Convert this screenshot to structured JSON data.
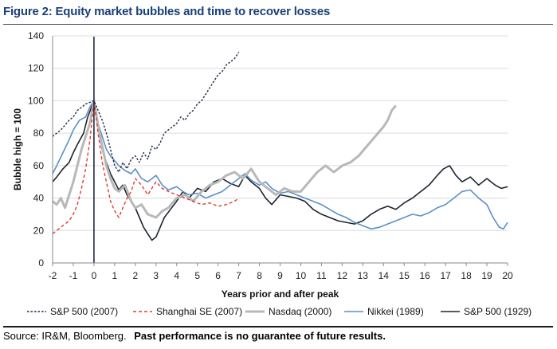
{
  "figure": {
    "title": "Figure 2: Equity market bubbles and time to recover losses",
    "source_label": "Source: IR&M, Bloomberg.",
    "disclaimer": "Past performance is no guarantee of future results."
  },
  "colors": {
    "title": "#1a3f7a",
    "sp2007": "#1f2a44",
    "shanghai": "#e23a2e",
    "nasdaq": "#b8b8b8",
    "nikkei": "#5b8fc9",
    "sp1929": "#1c2430",
    "peak_line": "#1f2a44"
  },
  "chart_data": {
    "type": "line",
    "title": "Equity market bubbles and time to recover losses",
    "xlabel": "Years prior and after peak",
    "ylabel": "Bubble high = 100",
    "xlim": [
      -2,
      20
    ],
    "ylim": [
      0,
      140
    ],
    "x_ticks": [
      -2,
      -1,
      0,
      1,
      2,
      3,
      4,
      5,
      6,
      7,
      8,
      9,
      10,
      11,
      12,
      13,
      14,
      15,
      16,
      17,
      18,
      19,
      20
    ],
    "y_ticks": [
      0,
      20,
      40,
      60,
      80,
      100,
      120,
      140
    ],
    "peak_marker_x": 0,
    "legend_position": "bottom",
    "series": [
      {
        "key": "sp1929",
        "name": "S&P 500 (1929)",
        "style": "solid",
        "x": [
          -2,
          -1.8,
          -1.5,
          -1.2,
          -1,
          -0.8,
          -0.5,
          -0.3,
          0,
          0.2,
          0.4,
          0.6,
          0.8,
          1,
          1.2,
          1.4,
          1.6,
          1.8,
          2,
          2.2,
          2.4,
          2.6,
          2.8,
          3,
          3.2,
          3.4,
          3.7,
          4,
          4.3,
          4.6,
          5,
          5.4,
          5.8,
          6.2,
          6.6,
          7,
          7.3,
          7.6,
          8,
          8.3,
          8.6,
          9,
          9.4,
          9.8,
          10.2,
          10.6,
          11,
          11.4,
          11.8,
          12.2,
          12.6,
          13,
          13.4,
          13.8,
          14.2,
          14.6,
          15,
          15.4,
          15.8,
          16.2,
          16.6,
          16.9,
          17.2,
          17.5,
          17.8,
          18.2,
          18.6,
          19,
          19.4,
          19.7,
          20
        ],
        "y": [
          50,
          53,
          58,
          62,
          68,
          73,
          80,
          90,
          100,
          85,
          70,
          62,
          55,
          50,
          45,
          48,
          42,
          38,
          34,
          28,
          22,
          18,
          14,
          16,
          22,
          28,
          33,
          38,
          44,
          40,
          46,
          44,
          50,
          52,
          49,
          47,
          54,
          50,
          46,
          40,
          36,
          42,
          41,
          40,
          38,
          33,
          30,
          28,
          26,
          25,
          24,
          26,
          30,
          33,
          35,
          33,
          37,
          40,
          44,
          48,
          54,
          58,
          60,
          54,
          50,
          53,
          48,
          52,
          48,
          46,
          47
        ]
      },
      {
        "key": "nikkei",
        "name": "Nikkei (1989)",
        "style": "solid",
        "x": [
          -2,
          -1.8,
          -1.5,
          -1.2,
          -1,
          -0.7,
          -0.4,
          -0.2,
          0,
          0.2,
          0.4,
          0.6,
          0.8,
          1,
          1.2,
          1.5,
          1.8,
          2,
          2.3,
          2.6,
          3,
          3.3,
          3.6,
          4,
          4.3,
          4.6,
          5,
          5.4,
          5.8,
          6.2,
          6.6,
          7,
          7.3,
          7.6,
          8,
          8.3,
          8.6,
          9,
          9.4,
          9.8,
          10.2,
          10.6,
          11,
          11.4,
          11.8,
          12.2,
          12.6,
          13,
          13.4,
          13.8,
          14.2,
          14.6,
          15,
          15.4,
          15.8,
          16.2,
          16.6,
          17,
          17.4,
          17.8,
          18.2,
          18.6,
          19,
          19.3,
          19.6,
          19.8,
          20
        ],
        "y": [
          55,
          60,
          68,
          76,
          82,
          88,
          90,
          96,
          100,
          86,
          78,
          70,
          66,
          63,
          60,
          57,
          55,
          58,
          52,
          50,
          54,
          48,
          45,
          47,
          44,
          42,
          43,
          40,
          42,
          44,
          48,
          52,
          55,
          51,
          48,
          50,
          46,
          43,
          44,
          42,
          40,
          38,
          36,
          33,
          30,
          28,
          25,
          23,
          21,
          22,
          24,
          26,
          28,
          30,
          29,
          31,
          34,
          36,
          40,
          44,
          45,
          40,
          36,
          28,
          22,
          21,
          25
        ]
      },
      {
        "key": "nasdaq",
        "name": "Nasdaq (2000)",
        "style": "solid",
        "x": [
          -2,
          -1.8,
          -1.6,
          -1.4,
          -1.2,
          -1,
          -0.8,
          -0.6,
          -0.4,
          -0.2,
          0,
          0.2,
          0.4,
          0.6,
          0.8,
          1,
          1.2,
          1.5,
          1.8,
          2,
          2.3,
          2.6,
          3,
          3.3,
          3.6,
          4,
          4.4,
          4.8,
          5.2,
          5.6,
          6,
          6.4,
          6.8,
          7.2,
          7.6,
          8,
          8.4,
          8.8,
          9.2,
          9.6,
          10,
          10.4,
          10.8,
          11.2,
          11.6,
          12,
          12.4,
          12.8,
          13.2,
          13.6,
          14,
          14.2,
          14.4,
          14.6
        ],
        "y": [
          38,
          36,
          40,
          34,
          42,
          50,
          60,
          70,
          78,
          86,
          100,
          85,
          72,
          60,
          52,
          46,
          44,
          48,
          38,
          34,
          36,
          30,
          28,
          32,
          34,
          40,
          42,
          38,
          44,
          48,
          50,
          54,
          56,
          52,
          58,
          50,
          46,
          42,
          46,
          44,
          44,
          50,
          56,
          60,
          56,
          60,
          62,
          66,
          72,
          78,
          84,
          88,
          94,
          97
        ]
      },
      {
        "key": "shanghai",
        "name": "Shanghai SE (2007)",
        "style": "dash",
        "x": [
          -2,
          -1.8,
          -1.6,
          -1.4,
          -1.2,
          -1,
          -0.8,
          -0.6,
          -0.4,
          -0.2,
          0,
          0.2,
          0.4,
          0.6,
          0.8,
          1,
          1.2,
          1.4,
          1.6,
          1.8,
          2,
          2.3,
          2.6,
          3,
          3.3,
          3.6,
          4,
          4.4,
          4.8,
          5.2,
          5.6,
          6,
          6.4,
          6.8,
          7
        ],
        "y": [
          18,
          20,
          22,
          24,
          26,
          30,
          36,
          46,
          58,
          75,
          100,
          80,
          62,
          50,
          38,
          32,
          28,
          34,
          40,
          44,
          52,
          48,
          42,
          50,
          46,
          44,
          42,
          40,
          38,
          36,
          37,
          35,
          36,
          38,
          40
        ]
      },
      {
        "key": "sp2007",
        "name": "S&P 500 (2007)",
        "style": "dot",
        "x": [
          -2,
          -1.8,
          -1.6,
          -1.4,
          -1.2,
          -1,
          -0.8,
          -0.6,
          -0.4,
          -0.2,
          0,
          0.2,
          0.4,
          0.6,
          0.8,
          1,
          1.2,
          1.4,
          1.6,
          1.8,
          2,
          2.2,
          2.4,
          2.6,
          2.8,
          3,
          3.2,
          3.4,
          3.6,
          3.8,
          4,
          4.2,
          4.4,
          4.6,
          4.8,
          5,
          5.2,
          5.4,
          5.6,
          5.8,
          6,
          6.2,
          6.4,
          6.6,
          6.8,
          7
        ],
        "y": [
          78,
          80,
          82,
          85,
          88,
          90,
          94,
          96,
          98,
          99,
          100,
          94,
          88,
          80,
          70,
          60,
          56,
          62,
          58,
          64,
          66,
          62,
          68,
          64,
          72,
          70,
          74,
          80,
          82,
          84,
          86,
          90,
          88,
          92,
          94,
          98,
          100,
          104,
          108,
          112,
          116,
          118,
          122,
          124,
          126,
          130
        ]
      }
    ]
  }
}
